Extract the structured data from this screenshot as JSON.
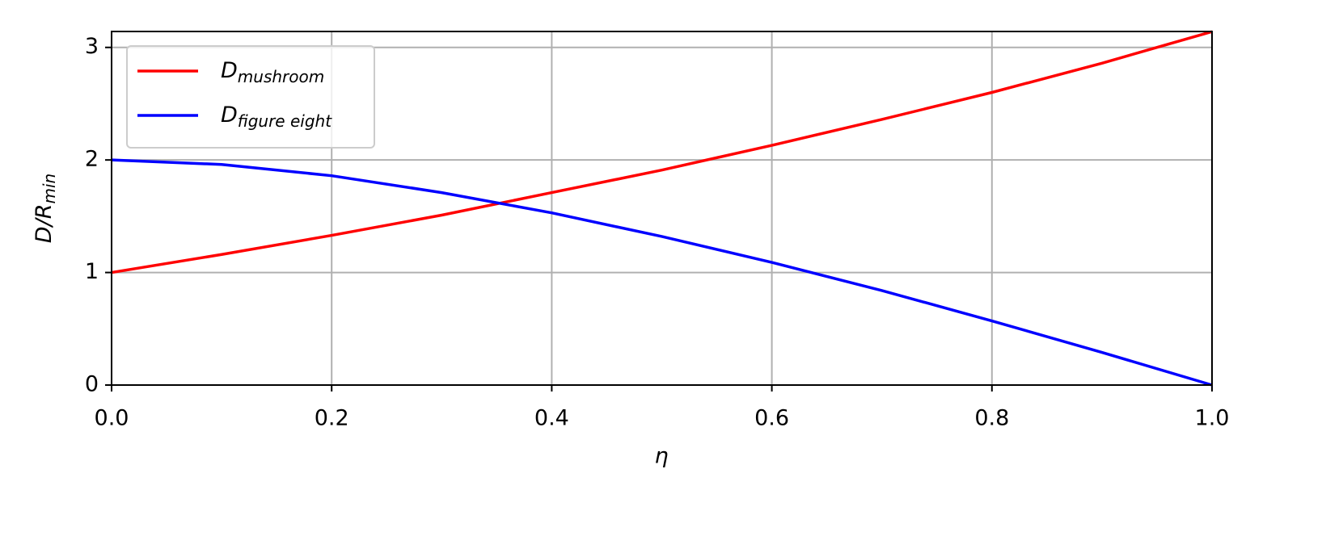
{
  "chart_data": {
    "type": "line",
    "xlabel": "η",
    "ylabel": "D/R",
    "ylabel_subscript": "min",
    "x": [
      0,
      0.1,
      0.2,
      0.3,
      0.4,
      0.5,
      0.6,
      0.7,
      0.8,
      0.9,
      1.0
    ],
    "series": [
      {
        "name": "D",
        "name_subscript": "mushroom",
        "color": "#ff0000",
        "values": [
          1.0,
          1.16,
          1.33,
          1.51,
          1.71,
          1.91,
          2.13,
          2.36,
          2.6,
          2.86,
          3.14
        ]
      },
      {
        "name": "D",
        "name_subscript": "figure eight",
        "color": "#0000ff",
        "values": [
          2.0,
          1.96,
          1.86,
          1.71,
          1.53,
          1.32,
          1.09,
          0.84,
          0.57,
          0.29,
          0.0
        ]
      }
    ],
    "xlim": [
      0,
      1
    ],
    "xticks": [
      {
        "value": 0,
        "label": "0.0"
      },
      0.2,
      0.4,
      0.6,
      0.8,
      {
        "value": 1,
        "label": "1.0"
      }
    ],
    "ylim": [
      0,
      3.1416
    ],
    "yticks": [
      0,
      1,
      2,
      3
    ],
    "grid": true,
    "legend": "upper left"
  }
}
